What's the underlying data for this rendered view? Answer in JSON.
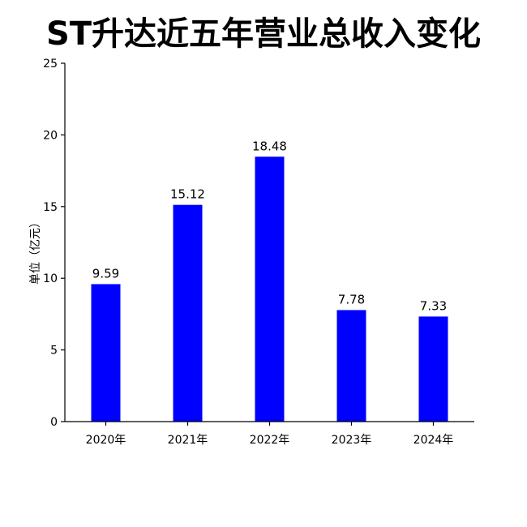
{
  "chart_data": {
    "type": "bar",
    "title": "ST升达近五年营业总收入变化",
    "xlabel": "",
    "ylabel": "单位（亿元）",
    "categories": [
      "2020年",
      "2021年",
      "2022年",
      "2023年",
      "2024年"
    ],
    "values": [
      9.59,
      15.12,
      18.48,
      7.78,
      7.33
    ],
    "value_labels": [
      "9.59",
      "15.12",
      "18.48",
      "7.78",
      "7.33"
    ],
    "ylim": [
      0,
      25
    ],
    "yticks": [
      0,
      5,
      10,
      15,
      20,
      25
    ],
    "ytick_labels": [
      "0",
      "5",
      "10",
      "15",
      "20",
      "25"
    ],
    "bar_color": "#0000ff",
    "grid": false,
    "legend": "none"
  }
}
